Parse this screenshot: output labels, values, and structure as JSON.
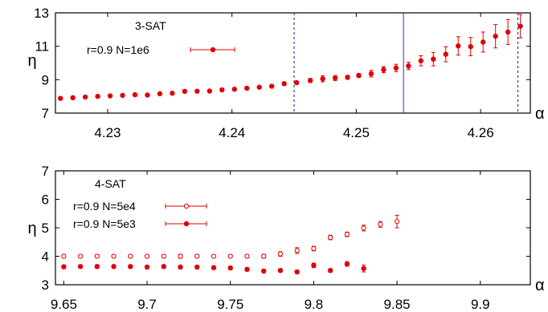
{
  "colors": {
    "series": "#e00000",
    "threshold_solid": "#3f3fd8",
    "threshold_dashed": "#2222bb",
    "axis": "#000000"
  },
  "chart_data": [
    {
      "type": "scatter",
      "title": "3-SAT",
      "xlabel": "α",
      "ylabel": "η",
      "xlim": [
        4.2258,
        4.264
      ],
      "ylim": [
        7,
        13
      ],
      "xticks": [
        4.23,
        4.24,
        4.25,
        4.26
      ],
      "xtick_labels": [
        "4.23",
        "4.24",
        "4.25",
        "4.26"
      ],
      "yticks": [
        7,
        9,
        11,
        13
      ],
      "ytick_labels": [
        "7",
        "9",
        "11",
        "13"
      ],
      "grid": false,
      "legend_position": "top-left",
      "vlines": [
        {
          "x": 4.245,
          "style": "dashed"
        },
        {
          "x": 4.2538,
          "style": "solid"
        },
        {
          "x": 4.263,
          "style": "dashed"
        }
      ],
      "series": [
        {
          "name": "r=0.9 N=1e6",
          "marker": "filled",
          "points": [
            {
              "x": 4.2262,
              "y": 7.88,
              "err": 0.06
            },
            {
              "x": 4.2272,
              "y": 7.92,
              "err": 0.06
            },
            {
              "x": 4.2282,
              "y": 7.96,
              "err": 0.06
            },
            {
              "x": 4.2292,
              "y": 8.0,
              "err": 0.06
            },
            {
              "x": 4.2302,
              "y": 8.03,
              "err": 0.06
            },
            {
              "x": 4.2312,
              "y": 8.06,
              "err": 0.06
            },
            {
              "x": 4.2322,
              "y": 8.1,
              "err": 0.06
            },
            {
              "x": 4.2332,
              "y": 8.08,
              "err": 0.06
            },
            {
              "x": 4.2342,
              "y": 8.16,
              "err": 0.06
            },
            {
              "x": 4.2352,
              "y": 8.19,
              "err": 0.06
            },
            {
              "x": 4.2362,
              "y": 8.3,
              "err": 0.07
            },
            {
              "x": 4.2372,
              "y": 8.31,
              "err": 0.07
            },
            {
              "x": 4.2382,
              "y": 8.32,
              "err": 0.07
            },
            {
              "x": 4.2392,
              "y": 8.39,
              "err": 0.1
            },
            {
              "x": 4.2402,
              "y": 8.43,
              "err": 0.07
            },
            {
              "x": 4.2412,
              "y": 8.49,
              "err": 0.07
            },
            {
              "x": 4.2422,
              "y": 8.55,
              "err": 0.07
            },
            {
              "x": 4.2432,
              "y": 8.61,
              "err": 0.07
            },
            {
              "x": 4.2442,
              "y": 8.76,
              "err": 0.1
            },
            {
              "x": 4.2452,
              "y": 8.82,
              "err": 0.07
            },
            {
              "x": 4.2463,
              "y": 8.95,
              "err": 0.12
            },
            {
              "x": 4.2473,
              "y": 9.05,
              "err": 0.18
            },
            {
              "x": 4.2483,
              "y": 9.1,
              "err": 0.15
            },
            {
              "x": 4.2493,
              "y": 9.14,
              "err": 0.12
            },
            {
              "x": 4.2502,
              "y": 9.25,
              "err": 0.12
            },
            {
              "x": 4.2512,
              "y": 9.36,
              "err": 0.2
            },
            {
              "x": 4.2522,
              "y": 9.6,
              "err": 0.18
            },
            {
              "x": 4.2532,
              "y": 9.7,
              "err": 0.22
            },
            {
              "x": 4.2542,
              "y": 9.82,
              "err": 0.22
            },
            {
              "x": 4.2552,
              "y": 10.13,
              "err": 0.3
            },
            {
              "x": 4.2562,
              "y": 10.23,
              "err": 0.4
            },
            {
              "x": 4.2572,
              "y": 10.52,
              "err": 0.45
            },
            {
              "x": 4.2582,
              "y": 11.02,
              "err": 0.55
            },
            {
              "x": 4.2592,
              "y": 10.98,
              "err": 0.55
            },
            {
              "x": 4.2602,
              "y": 11.25,
              "err": 0.6
            },
            {
              "x": 4.2612,
              "y": 11.6,
              "err": 0.7
            },
            {
              "x": 4.2622,
              "y": 11.85,
              "err": 0.75
            },
            {
              "x": 4.2632,
              "y": 12.2,
              "err": 0.7
            }
          ]
        }
      ]
    },
    {
      "type": "scatter",
      "title": "4-SAT",
      "xlabel": "α",
      "ylabel": "η",
      "xlim": [
        9.645,
        9.93
      ],
      "ylim": [
        3,
        7
      ],
      "xticks": [
        9.65,
        9.7,
        9.75,
        9.8,
        9.85,
        9.9
      ],
      "xtick_labels": [
        "9.65",
        "9.7",
        "9.75",
        "9.8",
        "9.85",
        "9.9"
      ],
      "yticks": [
        3,
        4,
        5,
        6,
        7
      ],
      "ytick_labels": [
        "3",
        "4",
        "5",
        "6",
        "7"
      ],
      "grid": false,
      "legend_position": "top-left",
      "series": [
        {
          "name": "r=0.9 N=5e4",
          "marker": "open",
          "points": [
            {
              "x": 9.65,
              "y": 4.0,
              "err": 0.05
            },
            {
              "x": 9.66,
              "y": 4.0,
              "err": 0.05
            },
            {
              "x": 9.67,
              "y": 4.0,
              "err": 0.05
            },
            {
              "x": 9.68,
              "y": 4.0,
              "err": 0.05
            },
            {
              "x": 9.69,
              "y": 4.0,
              "err": 0.05
            },
            {
              "x": 9.7,
              "y": 4.0,
              "err": 0.05
            },
            {
              "x": 9.71,
              "y": 4.0,
              "err": 0.05
            },
            {
              "x": 9.72,
              "y": 4.0,
              "err": 0.07
            },
            {
              "x": 9.73,
              "y": 4.0,
              "err": 0.05
            },
            {
              "x": 9.74,
              "y": 4.0,
              "err": 0.05
            },
            {
              "x": 9.75,
              "y": 4.0,
              "err": 0.05
            },
            {
              "x": 9.76,
              "y": 4.0,
              "err": 0.05
            },
            {
              "x": 9.77,
              "y": 4.0,
              "err": 0.07
            },
            {
              "x": 9.78,
              "y": 4.08,
              "err": 0.08
            },
            {
              "x": 9.79,
              "y": 4.2,
              "err": 0.1
            },
            {
              "x": 9.8,
              "y": 4.27,
              "err": 0.08
            },
            {
              "x": 9.81,
              "y": 4.66,
              "err": 0.08
            },
            {
              "x": 9.82,
              "y": 4.77,
              "err": 0.08
            },
            {
              "x": 9.83,
              "y": 4.99,
              "err": 0.1
            },
            {
              "x": 9.84,
              "y": 5.12,
              "err": 0.1
            },
            {
              "x": 9.85,
              "y": 5.22,
              "err": 0.22
            }
          ]
        },
        {
          "name": "r=0.9 N=5e3",
          "marker": "filled",
          "points": [
            {
              "x": 9.65,
              "y": 3.63,
              "err": 0.06
            },
            {
              "x": 9.66,
              "y": 3.64,
              "err": 0.06
            },
            {
              "x": 9.67,
              "y": 3.64,
              "err": 0.06
            },
            {
              "x": 9.68,
              "y": 3.64,
              "err": 0.06
            },
            {
              "x": 9.69,
              "y": 3.64,
              "err": 0.06
            },
            {
              "x": 9.7,
              "y": 3.62,
              "err": 0.06
            },
            {
              "x": 9.71,
              "y": 3.64,
              "err": 0.06
            },
            {
              "x": 9.72,
              "y": 3.62,
              "err": 0.06
            },
            {
              "x": 9.73,
              "y": 3.62,
              "err": 0.06
            },
            {
              "x": 9.74,
              "y": 3.6,
              "err": 0.06
            },
            {
              "x": 9.75,
              "y": 3.59,
              "err": 0.06
            },
            {
              "x": 9.76,
              "y": 3.54,
              "err": 0.06
            },
            {
              "x": 9.77,
              "y": 3.48,
              "err": 0.06
            },
            {
              "x": 9.78,
              "y": 3.5,
              "err": 0.06
            },
            {
              "x": 9.79,
              "y": 3.45,
              "err": 0.06
            },
            {
              "x": 9.8,
              "y": 3.68,
              "err": 0.08
            },
            {
              "x": 9.81,
              "y": 3.5,
              "err": 0.06
            },
            {
              "x": 9.82,
              "y": 3.73,
              "err": 0.08
            },
            {
              "x": 9.83,
              "y": 3.57,
              "err": 0.12
            }
          ]
        }
      ]
    }
  ]
}
